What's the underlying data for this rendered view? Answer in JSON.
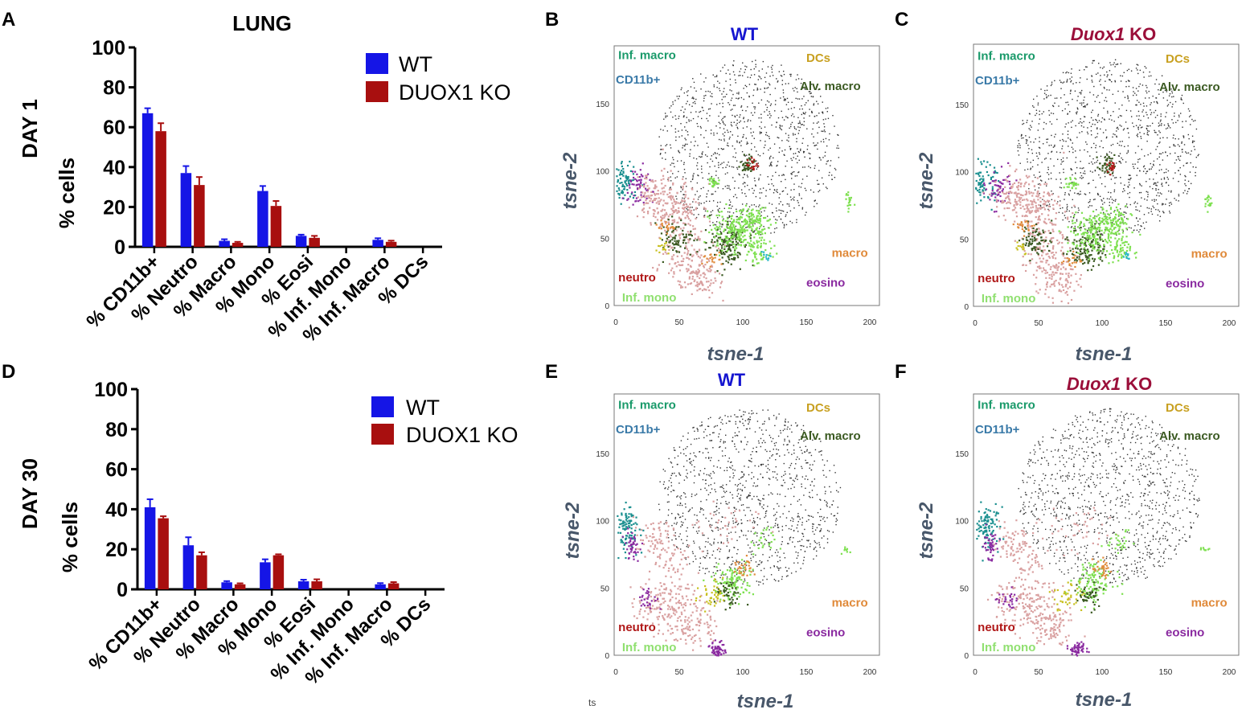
{
  "panel_letters": {
    "A": "A",
    "B": "B",
    "C": "C",
    "D": "D",
    "E": "E",
    "F": "F"
  },
  "colors": {
    "wt": "#1515e6",
    "ko": "#a80f0f",
    "wt_title": "#1515d0",
    "ko_title": "#9b0f3a"
  },
  "chart_data": [
    {
      "type": "bar",
      "panel": "A",
      "title": "LUNG",
      "row_label": "DAY 1",
      "ylabel": "% cells",
      "xlabel": "",
      "ylim": [
        0,
        100
      ],
      "yticks": [
        "0",
        "20",
        "40",
        "60",
        "80",
        "100"
      ],
      "categories": [
        "% CD11b+",
        "% Neutro",
        "% Macro",
        "% Mono",
        "% Eosi",
        "% Inf. Mono",
        "% Inf. Macro",
        "% DCs"
      ],
      "series": [
        {
          "name": "WT",
          "color": "#1515e6",
          "values": [
            67,
            37,
            3,
            28,
            5.5,
            0,
            3.5,
            0
          ],
          "errors": [
            2.5,
            3.5,
            0.8,
            2.5,
            0.6,
            0,
            0.8,
            0
          ]
        },
        {
          "name": "DUOX1 KO",
          "color": "#a80f0f",
          "values": [
            58,
            31,
            2,
            20.5,
            4.5,
            0,
            2.5,
            0
          ],
          "errors": [
            4,
            4,
            0.5,
            2.5,
            1,
            0,
            0.6,
            0
          ]
        }
      ],
      "legend": [
        "WT",
        "DUOX1 KO"
      ],
      "grid": false
    },
    {
      "type": "bar",
      "panel": "D",
      "title": "",
      "row_label": "DAY 30",
      "ylabel": "% cells",
      "xlabel": "",
      "ylim": [
        0,
        100
      ],
      "yticks": [
        "0",
        "20",
        "40",
        "60",
        "80",
        "100"
      ],
      "categories": [
        "% CD11b+",
        "% Neutro",
        "% Macro",
        "% Mono",
        "% Eosi",
        "% Inf. Mono",
        "% Inf. Macro",
        "% DCs"
      ],
      "series": [
        {
          "name": "WT",
          "color": "#1515e6",
          "values": [
            41,
            22,
            3.5,
            13.5,
            4,
            0,
            2.5,
            0
          ],
          "errors": [
            4,
            4,
            0.6,
            1.5,
            0.8,
            0,
            0.6,
            0
          ]
        },
        {
          "name": "DUOX1 KO",
          "color": "#a80f0f",
          "values": [
            35.5,
            17,
            2.5,
            17,
            4,
            0,
            3,
            0
          ],
          "errors": [
            1,
            1.5,
            0.5,
            0.5,
            1,
            0,
            0.6,
            0
          ]
        }
      ],
      "legend": [
        "WT",
        "DUOX1 KO"
      ],
      "grid": false
    },
    {
      "type": "scatter",
      "panel": "B",
      "title": "WT",
      "xlabel": "tsne-1",
      "ylabel": "tsne-2",
      "xlim": [
        0,
        200
      ],
      "ylim": [
        0,
        190
      ],
      "xticks": [
        "0",
        "50",
        "100",
        "150",
        "200"
      ],
      "yticks": [
        "0",
        "50",
        "100",
        "150"
      ],
      "populations": [
        "Inf. macro",
        "CD11b+",
        "DCs",
        "Alv. macro",
        "macro",
        "neutro",
        "eosino",
        "Inf. mono"
      ]
    },
    {
      "type": "scatter",
      "panel": "C",
      "title_italic": "Duox1",
      "title_rest": " KO",
      "xlabel": "tsne-1",
      "ylabel": "tsne-2",
      "xlim": [
        0,
        200
      ],
      "ylim": [
        0,
        190
      ],
      "xticks": [
        "0",
        "50",
        "100",
        "150",
        "200"
      ],
      "yticks": [
        "0",
        "50",
        "100",
        "150"
      ],
      "populations": [
        "Inf. macro",
        "CD11b+",
        "DCs",
        "Alv. macro",
        "macro",
        "neutro",
        "eosino",
        "Inf. mono"
      ]
    },
    {
      "type": "scatter",
      "panel": "E",
      "title": "WT",
      "xlabel": "tsne-1",
      "ylabel": "tsne-2",
      "xlim": [
        0,
        200
      ],
      "ylim": [
        0,
        190
      ],
      "xticks": [
        "0",
        "50",
        "100",
        "150",
        "200"
      ],
      "yticks": [
        "0",
        "50",
        "100",
        "150"
      ],
      "populations": [
        "Inf. macro",
        "CD11b+",
        "DCs",
        "Alv. macro",
        "macro",
        "neutro",
        "eosino",
        "Inf. mono"
      ],
      "stray_text": "ts"
    },
    {
      "type": "scatter",
      "panel": "F",
      "title_italic": "Duox1",
      "title_rest": " KO",
      "xlabel": "tsne-1",
      "ylabel": "tsne-2",
      "xlim": [
        0,
        200
      ],
      "ylim": [
        0,
        190
      ],
      "xticks": [
        "0",
        "50",
        "100",
        "150",
        "200"
      ],
      "yticks": [
        "0",
        "50",
        "100",
        "150"
      ],
      "populations": [
        "Inf. macro",
        "CD11b+",
        "DCs",
        "Alv. macro",
        "macro",
        "neutro",
        "eosino",
        "Inf. mono"
      ]
    }
  ],
  "population_colors": {
    "Inf. macro": "#1a9a6a",
    "CD11b+": "#3a7aa8",
    "DCs": "#c8a020",
    "Alv. macro": "#3b5a22",
    "macro": "#e08a3a",
    "neutro": "#b01818",
    "eosino": "#8a2aa0",
    "Inf. mono": "#90e070"
  }
}
